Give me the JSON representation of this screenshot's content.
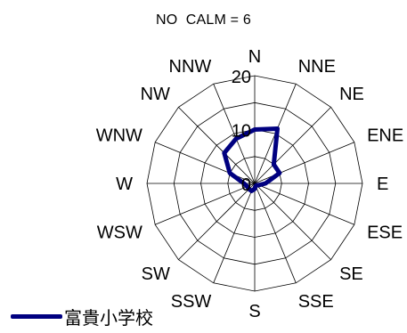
{
  "calm_text": "NO  CALM = 6",
  "colors": {
    "series": "#000080",
    "grid": "#000000",
    "background": "#ffffff"
  },
  "chart_data": {
    "type": "radar",
    "title": "NO  CALM = 6",
    "directions": [
      "N",
      "NNE",
      "NE",
      "ENE",
      "E",
      "ESE",
      "SE",
      "SSE",
      "S",
      "SSW",
      "SW",
      "WSW",
      "W",
      "WNW",
      "NW",
      "NNW"
    ],
    "radial_ticks": [
      0,
      10,
      20
    ],
    "rmax": 20,
    "grid": true,
    "legend_position": "bottom-left",
    "series": [
      {
        "name": "富貴小学校",
        "values": [
          10,
          11,
          5,
          5,
          2,
          0.8,
          0.5,
          0.5,
          1,
          1.5,
          1.5,
          1.5,
          2,
          5,
          8,
          9
        ]
      }
    ]
  }
}
